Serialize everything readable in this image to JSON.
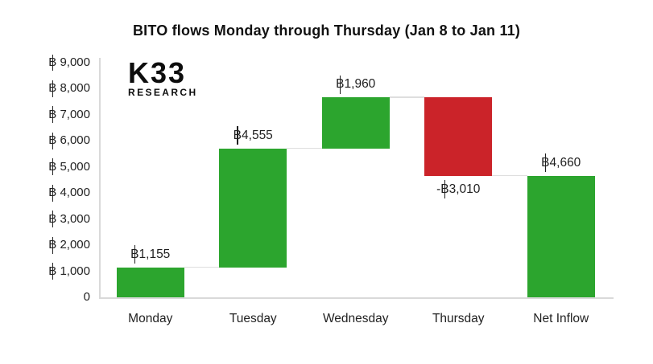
{
  "page": {
    "background": "#ffffff"
  },
  "title": "BITO flows Monday through Thursday (Jan 8 to Jan 11)",
  "logo": {
    "primary": "K33",
    "secondary": "RESEARCH"
  },
  "chart_data": {
    "type": "waterfall",
    "title": "BITO flows Monday through Thursday (Jan 8 to Jan 11)",
    "categories": [
      "Monday",
      "Tuesday",
      "Wednesday",
      "Thursday",
      "Net Inflow"
    ],
    "values": [
      1155,
      4555,
      1960,
      -3010,
      4660
    ],
    "cumulative_levels": [
      1155,
      5710,
      7670,
      4660,
      4660
    ],
    "bar_roles": [
      "increase",
      "increase",
      "increase",
      "decrease",
      "total"
    ],
    "data_labels": [
      "฿1,155",
      "฿4,555",
      "฿1,960",
      "-฿3,010",
      "฿4,660"
    ],
    "y_axis": {
      "min": 0,
      "max": 9000,
      "tick_values": [
        0,
        1000,
        2000,
        3000,
        4000,
        5000,
        6000,
        7000,
        8000,
        9000
      ],
      "tick_labels": [
        "0",
        "฿ 1,000",
        "฿ 2,000",
        "฿ 3,000",
        "฿ 4,000",
        "฿ 5,000",
        "฿ 6,000",
        "฿ 7,000",
        "฿ 8,000",
        "฿ 9,000"
      ]
    },
    "grid": false,
    "legend": false,
    "colors": {
      "increase": "#2ca52e",
      "decrease": "#cb2329",
      "connector": "#dedede",
      "axis_line": "#d9d9d9",
      "label_text": "#1f1f1f",
      "title_text": "#111111"
    }
  }
}
